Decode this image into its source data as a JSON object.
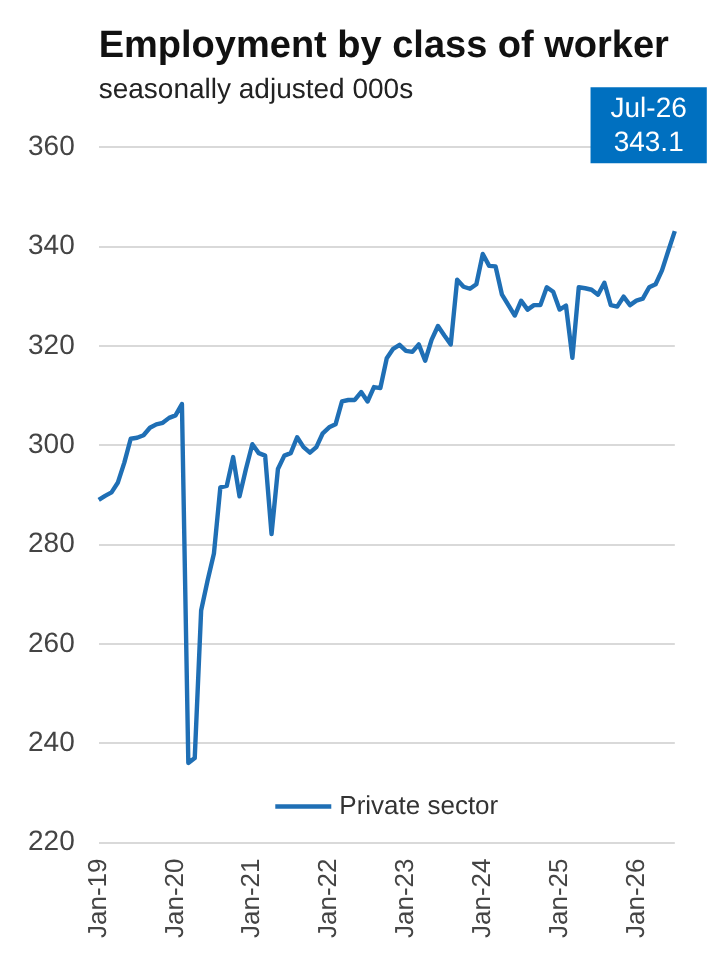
{
  "chart_data": {
    "type": "line",
    "title": "Employment by class of worker",
    "subtitle": "seasonally adjusted 000s",
    "categories": [
      "Jan-19",
      null,
      null,
      null,
      null,
      null,
      null,
      null,
      null,
      null,
      null,
      null,
      "Jan-20",
      null,
      null,
      null,
      null,
      null,
      null,
      null,
      null,
      null,
      null,
      null,
      "Jan-21",
      null,
      null,
      null,
      null,
      null,
      null,
      null,
      null,
      null,
      null,
      null,
      "Jan-22",
      null,
      null,
      null,
      null,
      null,
      null,
      null,
      null,
      null,
      null,
      null,
      "Jan-23",
      null,
      null,
      null,
      null,
      null,
      null,
      null,
      null,
      null,
      null,
      null,
      "Jan-24",
      null,
      null,
      null,
      null,
      null,
      null,
      null,
      null,
      null,
      null,
      null,
      "Jan-25",
      null,
      null,
      null,
      null,
      null,
      null,
      null,
      null,
      null,
      null,
      null,
      "Jan-26",
      null,
      null,
      null,
      null,
      null,
      null
    ],
    "series": [
      {
        "name": "Private sector",
        "color": "#1f6fb5",
        "values": [
          289.0,
          289.8,
          290.5,
          292.5,
          296.5,
          301.3,
          301.5,
          302.0,
          303.5,
          304.2,
          304.5,
          305.5,
          306.0,
          308.3,
          236.0,
          237.0,
          266.7,
          272.7,
          278.2,
          291.5,
          291.8,
          297.6,
          289.7,
          295.2,
          300.2,
          298.4,
          297.9,
          282.1,
          295.2,
          297.9,
          298.4,
          301.6,
          299.6,
          298.5,
          299.6,
          302.4,
          303.6,
          304.2,
          308.8,
          309.1,
          309.1,
          310.7,
          308.8,
          311.7,
          311.5,
          317.5,
          319.4,
          320.2,
          319.0,
          318.8,
          320.3,
          317.0,
          321.2,
          324.0,
          322.1,
          320.3,
          333.3,
          331.9,
          331.5,
          332.4,
          338.5,
          336.1,
          336.0,
          330.3,
          328.2,
          326.1,
          329.1,
          327.3,
          328.2,
          328.2,
          331.8,
          330.9,
          327.3,
          328.1,
          317.6,
          331.8,
          331.6,
          331.3,
          330.3,
          332.7,
          328.2,
          327.9,
          329.9,
          328.2,
          329.1,
          329.5,
          331.8,
          332.4,
          335.2,
          339.2,
          343.1
        ]
      }
    ],
    "annotations": [
      "Jul-26\n343.1"
    ],
    "ylim": [
      220,
      360
    ],
    "yticks": [
      220,
      240,
      260,
      280,
      300,
      320,
      340,
      360
    ],
    "grid": "y",
    "legend": "bottom",
    "marker": "none",
    "line_style": "solid"
  }
}
